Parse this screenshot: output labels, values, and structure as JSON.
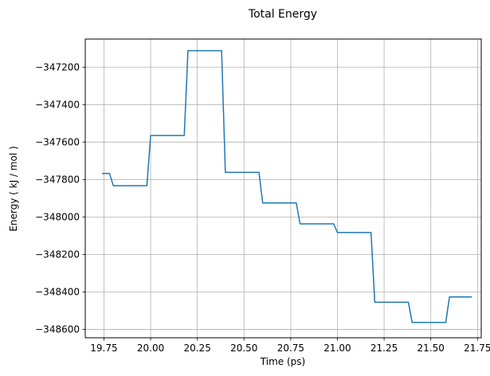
{
  "chart_data": {
    "type": "line",
    "title": "Total Energy",
    "xlabel": "Time (ps)",
    "ylabel": "Energy ( kJ / mol )",
    "xlim": [
      19.65,
      21.77
    ],
    "ylim": [
      -348645,
      -347050
    ],
    "grid": true,
    "xticks": [
      19.75,
      20.0,
      20.25,
      20.5,
      20.75,
      21.0,
      21.25,
      21.5,
      21.75
    ],
    "xtick_labels": [
      "19.75",
      "20.00",
      "20.25",
      "20.50",
      "20.75",
      "21.00",
      "21.25",
      "21.50",
      "21.75"
    ],
    "yticks": [
      -347200,
      -347400,
      -347600,
      -347800,
      -348000,
      -348200,
      -348400,
      -348600
    ],
    "ytick_labels": [
      "−347200",
      "−347400",
      "−347600",
      "−347800",
      "−348000",
      "−348200",
      "−348400",
      "−348600"
    ],
    "series": [
      {
        "color": "#1f77b4",
        "x": [
          19.74,
          19.78,
          19.8,
          19.98,
          20.0,
          20.18,
          20.2,
          20.38,
          20.4,
          20.58,
          20.6,
          20.78,
          20.8,
          20.98,
          21.0,
          21.18,
          21.2,
          21.38,
          21.4,
          21.58,
          21.6,
          21.72
        ],
        "y": [
          -347768,
          -347768,
          -347833,
          -347833,
          -347565,
          -347565,
          -347112,
          -347112,
          -347762,
          -347762,
          -347925,
          -347925,
          -348037,
          -348037,
          -348083,
          -348083,
          -348455,
          -348455,
          -348563,
          -348563,
          -348427,
          -348427
        ]
      }
    ]
  }
}
